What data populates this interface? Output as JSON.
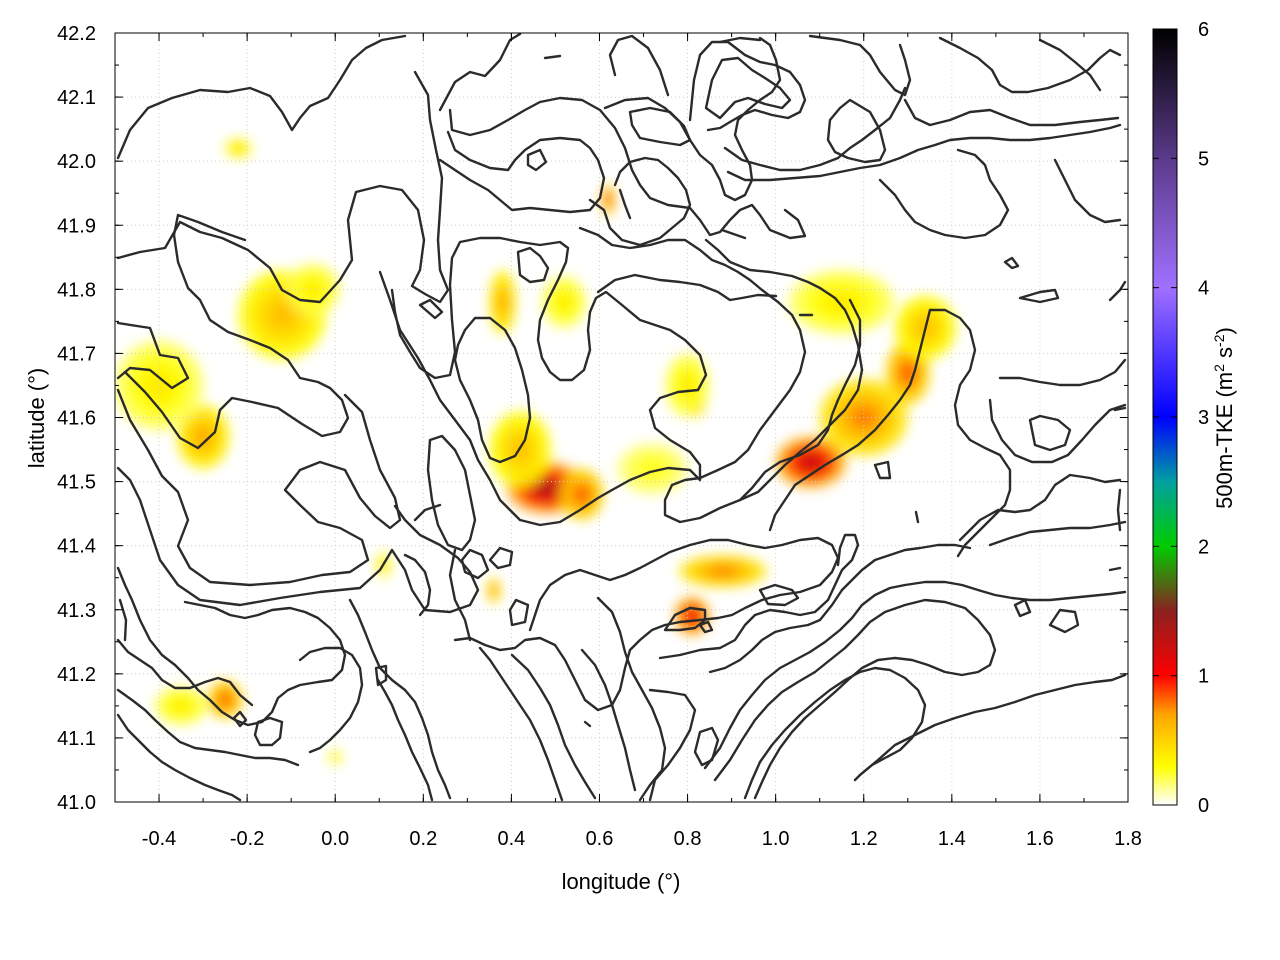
{
  "chart_data": {
    "type": "heatmap",
    "title": "",
    "xlabel": "longitude (°)",
    "ylabel": "latitude (°)",
    "colorbar_label": "500m-TKE (m² s⁻²)",
    "colorbar_label_main": "500m-TKE (m",
    "colorbar_label_sup1": "2",
    "colorbar_label_mid": " s",
    "colorbar_label_sup2": "-2",
    "colorbar_label_end": ")",
    "xlim": [
      -0.5,
      1.8
    ],
    "ylim": [
      41.0,
      42.2
    ],
    "zlim": [
      0,
      6
    ],
    "x_ticks": [
      -0.4,
      -0.2,
      0.0,
      0.2,
      0.4,
      0.6,
      0.8,
      1.0,
      1.2,
      1.4,
      1.6,
      1.8
    ],
    "x_tick_labels": [
      "-0.4",
      "-0.2",
      "0.0",
      "0.2",
      "0.4",
      "0.6",
      "0.8",
      "1.0",
      "1.2",
      "1.4",
      "1.6",
      "1.8"
    ],
    "y_ticks": [
      41.0,
      41.1,
      41.2,
      41.3,
      41.4,
      41.5,
      41.6,
      41.7,
      41.8,
      41.9,
      42.0,
      42.1,
      42.2
    ],
    "y_tick_labels": [
      "41.0",
      "41.1",
      "41.2",
      "41.3",
      "41.4",
      "41.5",
      "41.6",
      "41.7",
      "41.8",
      "41.9",
      "42.0",
      "42.1",
      "42.2"
    ],
    "colorbar_ticks": [
      0,
      1,
      2,
      3,
      4,
      5,
      6
    ],
    "colorbar_tick_labels": [
      "0",
      "1",
      "2",
      "3",
      "4",
      "5",
      "6"
    ],
    "grid": true,
    "legend": "colorbar-right",
    "colormap": [
      {
        "v": 0.0,
        "color": "#ffffff"
      },
      {
        "v": 0.3,
        "color": "#ffff00"
      },
      {
        "v": 0.7,
        "color": "#ffa500"
      },
      {
        "v": 1.0,
        "color": "#ff0000"
      },
      {
        "v": 1.5,
        "color": "#8b2020"
      },
      {
        "v": 2.0,
        "color": "#00cc00"
      },
      {
        "v": 2.5,
        "color": "#00a0a0"
      },
      {
        "v": 3.0,
        "color": "#0000ff"
      },
      {
        "v": 4.0,
        "color": "#a070ff"
      },
      {
        "v": 5.0,
        "color": "#5a3a8a"
      },
      {
        "v": 6.0,
        "color": "#000000"
      }
    ],
    "tke_blobs": [
      {
        "lon": 0.48,
        "lat": 41.49,
        "v": 1.4,
        "rx": 0.09,
        "ry": 0.04
      },
      {
        "lon": 0.56,
        "lat": 41.48,
        "v": 0.9,
        "rx": 0.05,
        "ry": 0.04
      },
      {
        "lon": 0.42,
        "lat": 41.55,
        "v": 0.6,
        "rx": 0.07,
        "ry": 0.06
      },
      {
        "lon": 1.08,
        "lat": 41.53,
        "v": 1.3,
        "rx": 0.08,
        "ry": 0.04
      },
      {
        "lon": 1.2,
        "lat": 41.6,
        "v": 0.8,
        "rx": 0.1,
        "ry": 0.06
      },
      {
        "lon": 1.3,
        "lat": 41.67,
        "v": 0.9,
        "rx": 0.05,
        "ry": 0.05
      },
      {
        "lon": 1.34,
        "lat": 41.74,
        "v": 0.6,
        "rx": 0.07,
        "ry": 0.05
      },
      {
        "lon": 1.15,
        "lat": 41.78,
        "v": 0.4,
        "rx": 0.12,
        "ry": 0.05
      },
      {
        "lon": 0.81,
        "lat": 41.29,
        "v": 1.2,
        "rx": 0.04,
        "ry": 0.03
      },
      {
        "lon": 0.88,
        "lat": 41.36,
        "v": 0.8,
        "rx": 0.1,
        "ry": 0.025
      },
      {
        "lon": 0.82,
        "lat": 41.62,
        "v": 0.9,
        "rx": 0.02,
        "ry": 0.02
      },
      {
        "lon": 0.8,
        "lat": 41.65,
        "v": 0.4,
        "rx": 0.05,
        "ry": 0.05
      },
      {
        "lon": -0.3,
        "lat": 41.57,
        "v": 0.7,
        "rx": 0.06,
        "ry": 0.05
      },
      {
        "lon": -0.4,
        "lat": 41.65,
        "v": 0.4,
        "rx": 0.1,
        "ry": 0.07
      },
      {
        "lon": -0.12,
        "lat": 41.76,
        "v": 0.6,
        "rx": 0.1,
        "ry": 0.07
      },
      {
        "lon": -0.05,
        "lat": 41.8,
        "v": 0.4,
        "rx": 0.06,
        "ry": 0.04
      },
      {
        "lon": 0.38,
        "lat": 41.78,
        "v": 0.7,
        "rx": 0.03,
        "ry": 0.05
      },
      {
        "lon": 0.52,
        "lat": 41.78,
        "v": 0.4,
        "rx": 0.05,
        "ry": 0.04
      },
      {
        "lon": -0.25,
        "lat": 41.16,
        "v": 0.9,
        "rx": 0.04,
        "ry": 0.03
      },
      {
        "lon": -0.35,
        "lat": 41.15,
        "v": 0.4,
        "rx": 0.06,
        "ry": 0.03
      },
      {
        "lon": 0.62,
        "lat": 41.94,
        "v": 1.0,
        "rx": 0.015,
        "ry": 0.025
      },
      {
        "lon": -0.22,
        "lat": 42.02,
        "v": 0.5,
        "rx": 0.03,
        "ry": 0.015
      },
      {
        "lon": 0.36,
        "lat": 41.33,
        "v": 0.8,
        "rx": 0.015,
        "ry": 0.02
      },
      {
        "lon": 0.11,
        "lat": 41.37,
        "v": 0.5,
        "rx": 0.015,
        "ry": 0.02
      },
      {
        "lon": 0.72,
        "lat": 41.52,
        "v": 0.3,
        "rx": 0.08,
        "ry": 0.04
      },
      {
        "lon": 0.0,
        "lat": 41.07,
        "v": 0.4,
        "rx": 0.015,
        "ry": 0.012
      }
    ]
  }
}
